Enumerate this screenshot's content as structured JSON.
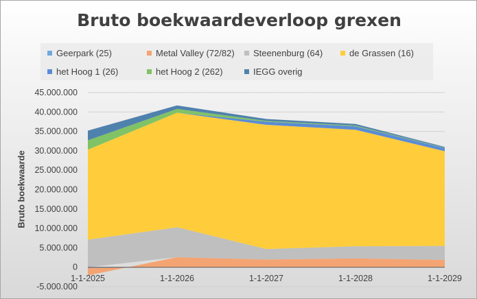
{
  "chart_data": {
    "type": "area",
    "stacked": true,
    "title": "Bruto boekwaardeverloop grexen",
    "xlabel": "",
    "ylabel": "Bruto boekwaarde",
    "x": [
      "1-1-2025",
      "1-1-2026",
      "1-1-2027",
      "1-1-2028",
      "1-1-2029"
    ],
    "ylim": [
      -5000000,
      45000000
    ],
    "yticks": [
      -5000000,
      0,
      5000000,
      10000000,
      15000000,
      20000000,
      25000000,
      30000000,
      35000000,
      40000000,
      45000000
    ],
    "ytick_labels": [
      "-5.000.000",
      "0",
      "5.000.000",
      "10.000.000",
      "15.000.000",
      "20.000.000",
      "25.000.000",
      "30.000.000",
      "35.000.000",
      "40.000.000",
      "45.000.000"
    ],
    "grid": true,
    "legend_position": "top",
    "series": [
      {
        "name": "Geerpark (25)",
        "color": "#6fa8dc",
        "values": [
          -200000,
          0,
          0,
          0,
          0
        ]
      },
      {
        "name": "Metal Valley (72/82)",
        "color": "#f4a473",
        "values": [
          -1900000,
          2600000,
          2000000,
          2300000,
          1900000
        ]
      },
      {
        "name": "Steenenburg (64)",
        "color": "#bfbfbf",
        "values": [
          7100000,
          7700000,
          2700000,
          3100000,
          3600000
        ]
      },
      {
        "name": "de Grassen (16)",
        "color": "#ffcd3c",
        "values": [
          23200000,
          29500000,
          32000000,
          30000000,
          24400000
        ]
      },
      {
        "name": "het Hoog 1 (26)",
        "color": "#5b8bd6",
        "values": [
          0,
          0,
          800000,
          900000,
          800000
        ]
      },
      {
        "name": "het Hoog 2 (262)",
        "color": "#80c266",
        "values": [
          2400000,
          1000000,
          200000,
          200000,
          100000
        ]
      },
      {
        "name": "IEGG overig",
        "color": "#4f81ad",
        "values": [
          2500000,
          900000,
          500000,
          400000,
          200000
        ]
      }
    ]
  }
}
